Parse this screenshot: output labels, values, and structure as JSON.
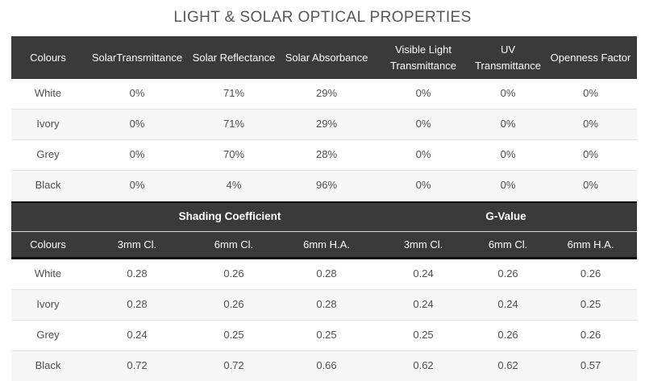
{
  "page_title": "LIGHT & SOLAR OPTICAL PROPERTIES",
  "colors": {
    "header_bg": "#3a3a3a",
    "header_text": "#ffffff",
    "stripe_bg": "#f7f7f7",
    "row_border": "#e4e4e4",
    "title_text": "#55585b",
    "cell_text": "#4e4e4e",
    "divider_dark": "#0d0d0d",
    "divider_light": "#d9d9d9"
  },
  "optical_table": {
    "columns": [
      "Colours",
      "SolarTransmittance",
      "Solar Reflectance",
      "Solar Absorbance",
      "Visible Light Transmittance",
      "UV Transmittance",
      "Openness Factor"
    ],
    "rows": [
      {
        "colour": "White",
        "values": [
          "0%",
          "71%",
          "29%",
          "0%",
          "0%",
          "0%"
        ]
      },
      {
        "colour": "Ivory",
        "values": [
          "0%",
          "71%",
          "29%",
          "0%",
          "0%",
          "0%"
        ]
      },
      {
        "colour": "Grey",
        "values": [
          "0%",
          "70%",
          "28%",
          "0%",
          "0%",
          "0%"
        ]
      },
      {
        "colour": "Black",
        "values": [
          "0%",
          "4%",
          "96%",
          "0%",
          "0%",
          "0%"
        ]
      }
    ]
  },
  "coefficient_table": {
    "group_headers": [
      {
        "label": "",
        "span": 1
      },
      {
        "label": "Shading Coefficient",
        "span": 3
      },
      {
        "label": "G-Value",
        "span": 3
      }
    ],
    "columns": [
      "Colours",
      "3mm Cl.",
      "6mm Cl.",
      "6mm H.A.",
      "3mm Cl.",
      "6mm Cl.",
      "6mm H.A."
    ],
    "rows": [
      {
        "colour": "White",
        "values": [
          "0.28",
          "0.26",
          "0.28",
          "0.24",
          "0.26",
          "0.26"
        ]
      },
      {
        "colour": "Ivory",
        "values": [
          "0.28",
          "0.26",
          "0.28",
          "0.24",
          "0.24",
          "0.25"
        ]
      },
      {
        "colour": "Grey",
        "values": [
          "0.24",
          "0.25",
          "0.25",
          "0.25",
          "0.26",
          "0.26"
        ]
      },
      {
        "colour": "Black",
        "values": [
          "0.72",
          "0.72",
          "0.66",
          "0.62",
          "0.62",
          "0.57"
        ]
      }
    ]
  }
}
